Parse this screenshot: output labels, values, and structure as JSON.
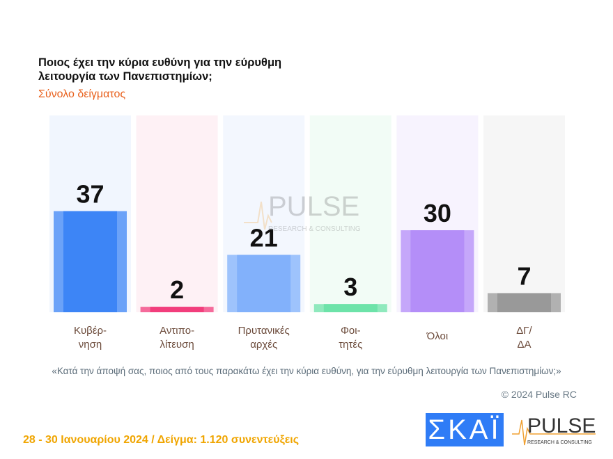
{
  "chart_data": {
    "type": "bar",
    "title": "Ποιος έχει την κύρια ευθύνη για την εύρυθμη λειτουργία των Πανεπιστημίων;",
    "subtitle": "Σύνολο δείγματος",
    "categories": [
      "Κυβέρ-\nνηση",
      "Αντιπο-\nλίτευση",
      "Πρυτανικές\nαρχές",
      "Φοι-\nτητές",
      "Όλοι",
      "ΔΓ/\nΔΑ"
    ],
    "values": [
      37,
      2,
      21,
      3,
      30,
      7
    ],
    "colors": [
      "#3d85f6",
      "#f23e7c",
      "#82b1fb",
      "#6de3a9",
      "#b48ef8",
      "#999999"
    ],
    "background_colors": [
      "#f1f6fe",
      "#fef1f5",
      "#f3f7fe",
      "#f2fcf6",
      "#f7f3fe",
      "#f6f6f6"
    ],
    "ylim": [
      0,
      72
    ],
    "grid": false
  },
  "question": "«Κατά την άποψή σας, ποιος από τους παρακάτω έχει την κύρια ευθύνη, για την εύρυθμη λειτουργία των Πανεπιστημίων;»",
  "copyright": "© 2024 Pulse RC",
  "footer": "28 - 30  Ιανουαρίου  2024  /  Δείγμα:  1.120 συνεντεύξεις",
  "logos": {
    "skai": "ΣΚΑΪ",
    "pulse": "PULSE",
    "pulse_sub": "RESEARCH & CONSULTING"
  }
}
